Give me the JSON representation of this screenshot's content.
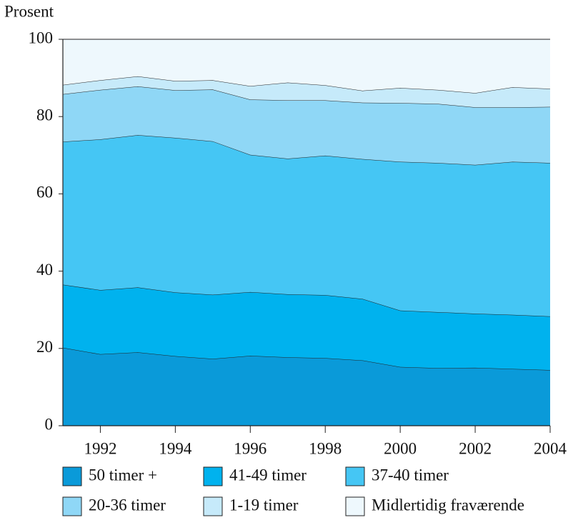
{
  "chart_data": {
    "type": "stacked_area",
    "y_label": "Prosent",
    "x": [
      1991,
      1992,
      1993,
      1994,
      1995,
      1996,
      1997,
      1998,
      1999,
      2000,
      2001,
      2002,
      2003,
      2004
    ],
    "xlim": [
      1991,
      2004
    ],
    "xticks": [
      1992,
      1994,
      1996,
      1998,
      2000,
      2002,
      2004
    ],
    "ylim": [
      0,
      100
    ],
    "yticks": [
      0,
      20,
      40,
      60,
      80,
      100
    ],
    "series": [
      {
        "name": "50 timer +",
        "color": "#0a9ad9",
        "values": [
          20.2,
          18.5,
          19.0,
          18.0,
          17.3,
          18.1,
          17.7,
          17.5,
          16.9,
          15.2,
          14.9,
          15.0,
          14.7,
          14.4
        ]
      },
      {
        "name": "41-49 timer",
        "color": "#00b2ee",
        "values": [
          16.3,
          16.6,
          16.8,
          16.5,
          16.6,
          16.5,
          16.3,
          16.3,
          15.9,
          14.6,
          14.5,
          14.0,
          14.0,
          13.9
        ]
      },
      {
        "name": "37-40 timer",
        "color": "#45c6f4",
        "values": [
          37.0,
          39.0,
          39.4,
          40.0,
          39.7,
          35.5,
          35.1,
          36.1,
          36.2,
          38.5,
          38.6,
          38.5,
          39.6,
          39.7
        ]
      },
      {
        "name": "20-36 timer",
        "color": "#8fd7f6",
        "values": [
          12.3,
          12.8,
          12.6,
          12.3,
          13.4,
          14.3,
          15.1,
          14.3,
          14.6,
          15.2,
          15.3,
          14.9,
          14.1,
          14.5
        ]
      },
      {
        "name": "1-19 timer",
        "color": "#c6eafa",
        "values": [
          2.4,
          2.5,
          2.6,
          2.4,
          2.4,
          3.5,
          4.6,
          3.9,
          3.1,
          3.9,
          3.6,
          3.7,
          5.2,
          4.7
        ]
      },
      {
        "name": "Midlertidig fraværende",
        "color": "#eef8fd",
        "values": [
          11.8,
          10.6,
          9.6,
          10.8,
          10.6,
          12.1,
          11.2,
          11.9,
          13.3,
          12.6,
          13.1,
          13.9,
          12.4,
          12.8
        ]
      }
    ]
  }
}
